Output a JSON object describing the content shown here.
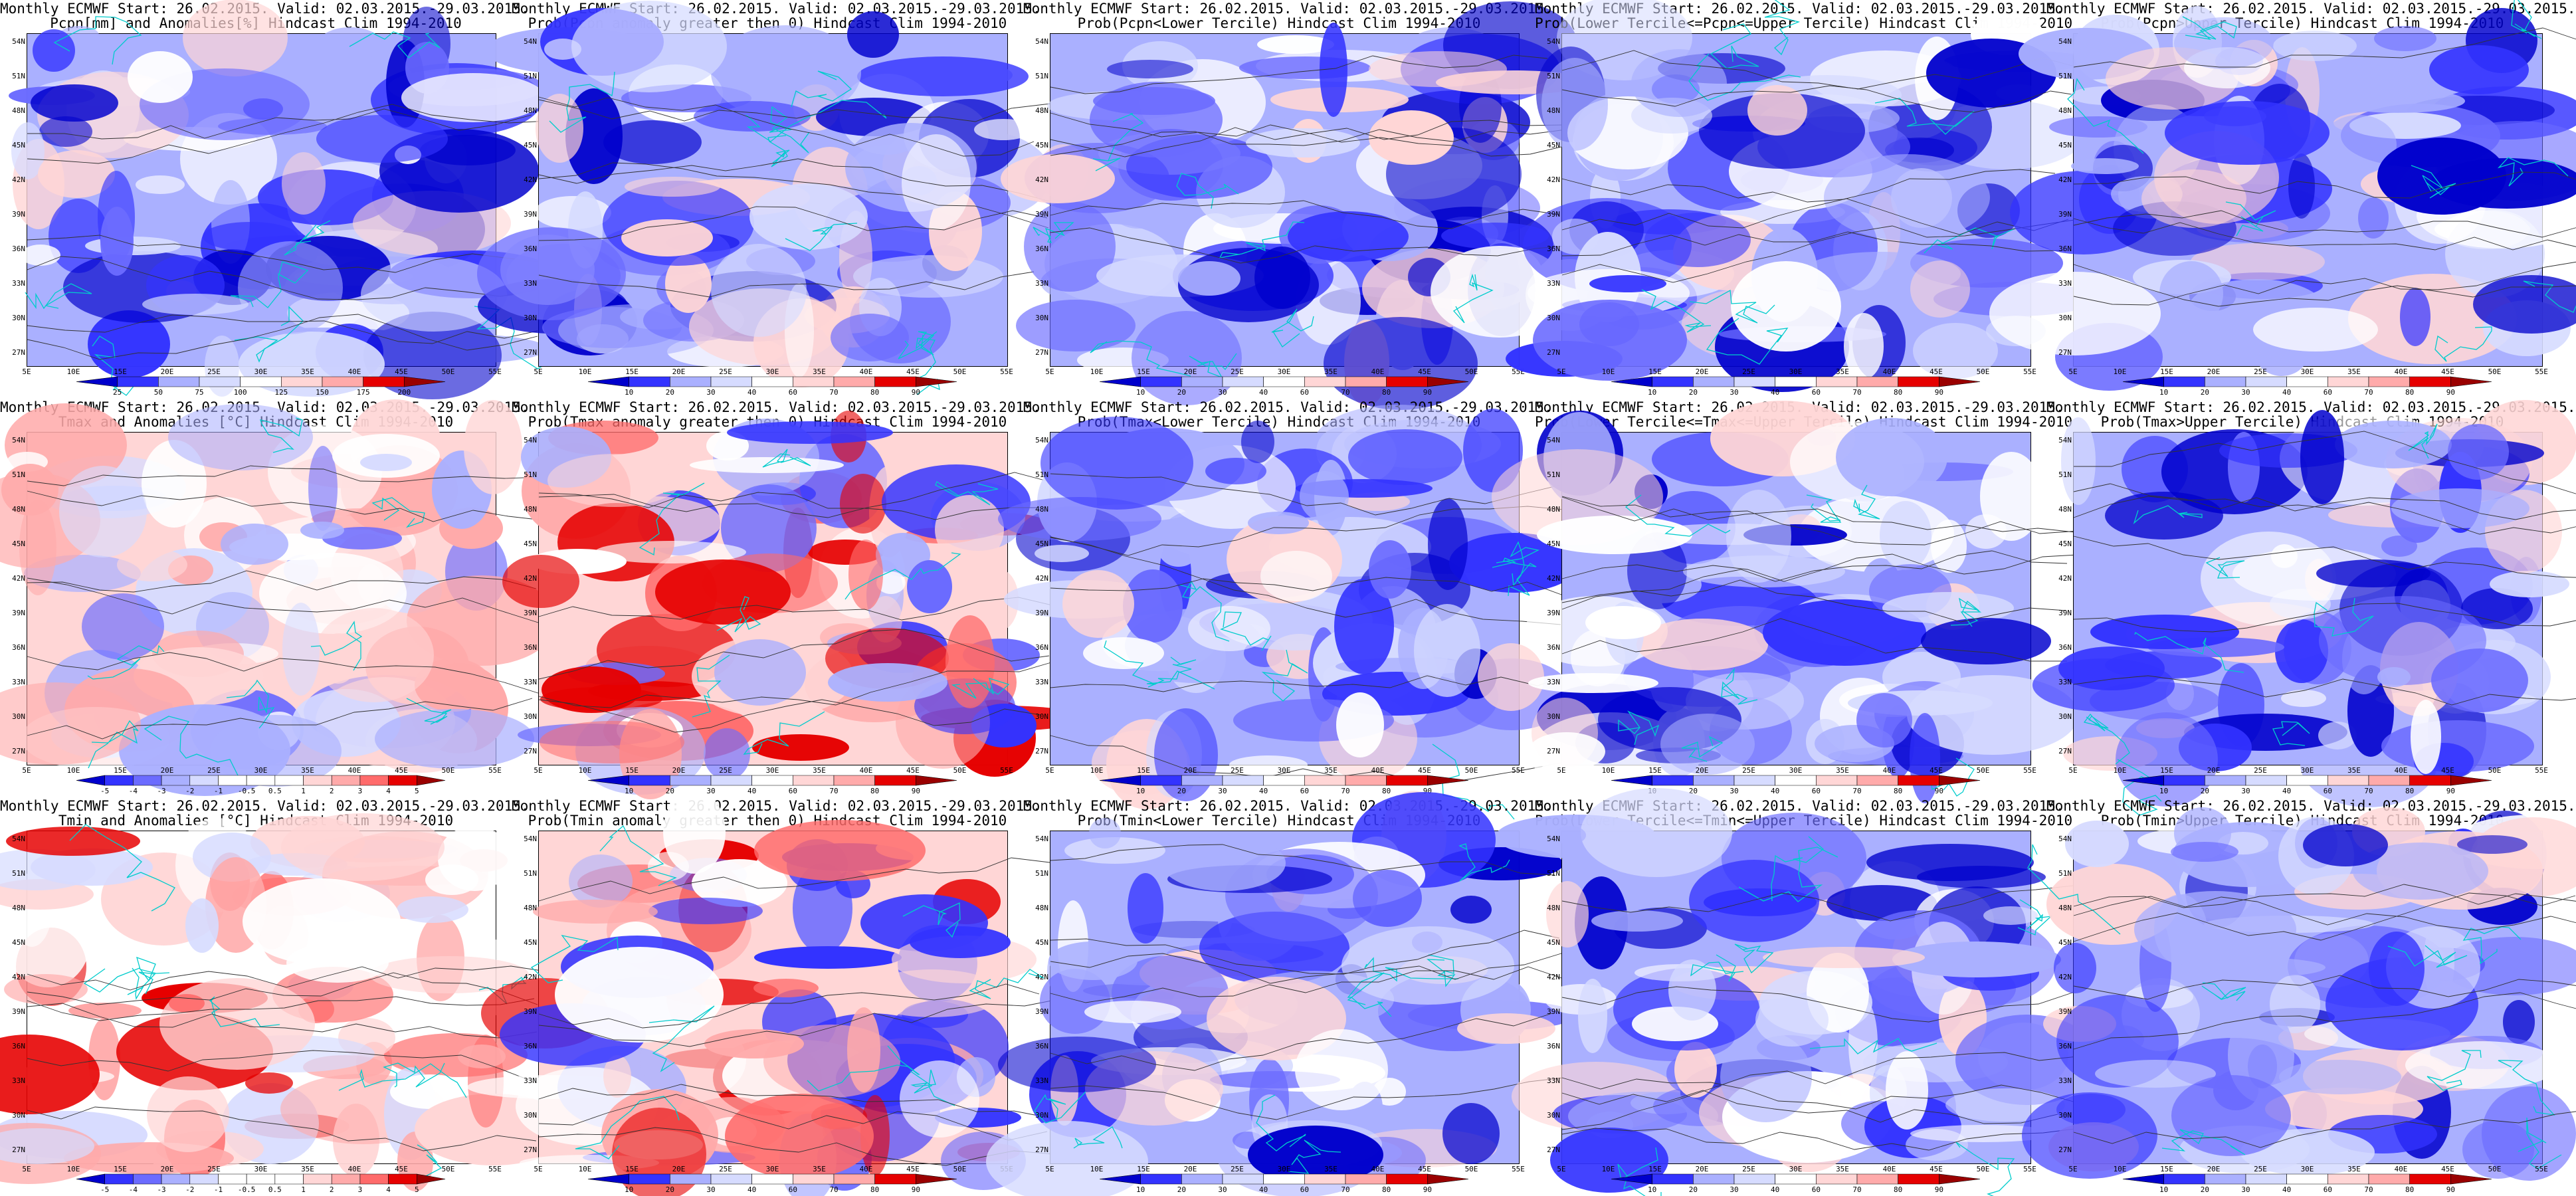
{
  "map_labels": {
    "lat": [
      "54N",
      "51N",
      "48N",
      "45N",
      "42N",
      "39N",
      "36N",
      "33N",
      "30N",
      "27N"
    ],
    "lon": [
      "5E",
      "10E",
      "15E",
      "20E",
      "25E",
      "30E",
      "35E",
      "40E",
      "45E",
      "50E",
      "55E"
    ]
  },
  "colors": {
    "deep_blue": "#0000cc",
    "blue": "#3333ff",
    "mid_blue": "#6b6bff",
    "light_blue": "#aab0ff",
    "pale_blue": "#d6dbff",
    "white": "#ffffff",
    "pale_red": "#ffd6d6",
    "light_red": "#ffaaaa",
    "mid_red": "#ff6b6b",
    "red": "#e60000",
    "deep_red": "#9a0000",
    "coast": "#00cccc",
    "contour": "#333333"
  },
  "panels": [
    {
      "title1": "Monthly ECMWF Start: 26.02.2015. Valid: 02.03.2015.-29.03.2015.",
      "title2": "Pcpn[mm] and Anomalies[%] Hindcast Clim 1994-2010",
      "ticks": [
        "25",
        "50",
        "75",
        "100",
        "125",
        "150",
        "175",
        "200"
      ],
      "bias": "blue"
    },
    {
      "title1": "Monthly ECMWF Start: 26.02.2015. Valid: 02.03.2015.-29.03.2015.",
      "title2": "Prob(Pcpn anomaly greater then 0) Hindcast Clim 1994-2010",
      "ticks": [
        "10",
        "20",
        "30",
        "40",
        "60",
        "70",
        "80",
        "90"
      ],
      "bias": "blue"
    },
    {
      "title1": "Monthly ECMWF Start: 26.02.2015. Valid: 02.03.2015.-29.03.2015.",
      "title2": "Prob(Pcpn<Lower Tercile) Hindcast Clim 1994-2010",
      "ticks": [
        "10",
        "20",
        "30",
        "40",
        "60",
        "70",
        "80",
        "90"
      ],
      "bias": "blue"
    },
    {
      "title1": "Monthly ECMWF Start: 26.02.2015. Valid: 02.03.2015.-29.03.2015.",
      "title2": "Prob(Lower Tercile<=Pcpn<=Upper Tercile) Hindcast Clim 1994-2010",
      "ticks": [
        "10",
        "20",
        "30",
        "40",
        "60",
        "70",
        "80",
        "90"
      ],
      "bias": "blue"
    },
    {
      "title1": "Monthly ECMWF Start: 26.02.2015. Valid: 02.03.2015.-29.03.2015.",
      "title2": "Prob(Pcpn>Upper Tercile) Hindcast Clim 1994-2010",
      "ticks": [
        "10",
        "20",
        "30",
        "40",
        "60",
        "70",
        "80",
        "90"
      ],
      "bias": "blue"
    },
    {
      "title1": "Monthly ECMWF Start: 26.02.2015. Valid: 02.03.2015.-29.03.2015.",
      "title2": "Tmax and Anomalies [°C] Hindcast Clim 1994-2010",
      "ticks": [
        "-5",
        "-4",
        "-3",
        "-2",
        "-1",
        "-0.5",
        "0.5",
        "1",
        "2",
        "3",
        "4",
        "5"
      ],
      "bias": "neutral"
    },
    {
      "title1": "Monthly ECMWF Start: 26.02.2015. Valid: 02.03.2015.-29.03.2015.",
      "title2": "Prob(Tmax anomaly greater then 0) Hindcast Clim 1994-2010",
      "ticks": [
        "10",
        "20",
        "30",
        "40",
        "60",
        "70",
        "80",
        "90"
      ],
      "bias": "mixed"
    },
    {
      "title1": "Monthly ECMWF Start: 26.02.2015. Valid: 02.03.2015.-29.03.2015.",
      "title2": "Prob(Tmax<Lower Tercile) Hindcast Clim 1994-2010",
      "ticks": [
        "10",
        "20",
        "30",
        "40",
        "60",
        "70",
        "80",
        "90"
      ],
      "bias": "blue"
    },
    {
      "title1": "Monthly ECMWF Start: 26.02.2015. Valid: 02.03.2015.-29.03.2015.",
      "title2": "Prob(Lower Tercile<=Tmax<=Upper Tercile) Hindcast Clim 1994-2010",
      "ticks": [
        "10",
        "20",
        "30",
        "40",
        "60",
        "70",
        "80",
        "90"
      ],
      "bias": "blue"
    },
    {
      "title1": "Monthly ECMWF Start: 26.02.2015. Valid: 02.03.2015.-29.03.2015.",
      "title2": "Prob(Tmax>Upper Tercile) Hindcast Clim 1994-2010",
      "ticks": [
        "10",
        "20",
        "30",
        "40",
        "60",
        "70",
        "80",
        "90"
      ],
      "bias": "blue"
    },
    {
      "title1": "Monthly ECMWF Start: 26.02.2015. Valid: 02.03.2015.-29.03.2015.",
      "title2": "Tmin and Anomalies [°C] Hindcast Clim 1994-2010",
      "ticks": [
        "-5",
        "-4",
        "-3",
        "-2",
        "-1",
        "-0.5",
        "0.5",
        "1",
        "2",
        "3",
        "4",
        "5"
      ],
      "bias": "red"
    },
    {
      "title1": "Monthly ECMWF Start: 26.02.2015. Valid: 02.03.2015.-29.03.2015.",
      "title2": "Prob(Tmin anomaly greater then 0) Hindcast Clim 1994-2010",
      "ticks": [
        "10",
        "20",
        "30",
        "40",
        "60",
        "70",
        "80",
        "90"
      ],
      "bias": "mixed"
    },
    {
      "title1": "Monthly ECMWF Start: 26.02.2015. Valid: 02.03.2015.-29.03.2015.",
      "title2": "Prob(Tmin<Lower Tercile) Hindcast Clim 1994-2010",
      "ticks": [
        "10",
        "20",
        "30",
        "40",
        "60",
        "70",
        "80",
        "90"
      ],
      "bias": "blue"
    },
    {
      "title1": "Monthly ECMWF Start: 26.02.2015. Valid: 02.03.2015.-29.03.2015.",
      "title2": "Prob(Lower Tercile<=Tmin<=Upper Tercile) Hindcast Clim 1994-2010",
      "ticks": [
        "10",
        "20",
        "30",
        "40",
        "60",
        "70",
        "80",
        "90"
      ],
      "bias": "blue"
    },
    {
      "title1": "Monthly ECMWF Start: 26.02.2015. Valid: 02.03.2015.-29.03.2015.",
      "title2": "Prob(Tmin>Upper Tercile) Hindcast Clim 1994-2010",
      "ticks": [
        "10",
        "20",
        "30",
        "40",
        "60",
        "70",
        "80",
        "90"
      ],
      "bias": "blue"
    }
  ]
}
